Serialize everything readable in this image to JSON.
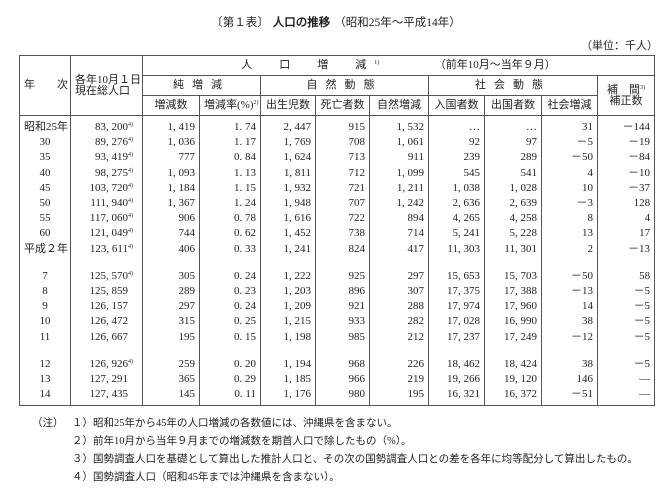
{
  "title": {
    "label": "〔第１表〕",
    "main": "人口の推移",
    "range": "（昭和25年～平成14年）"
  },
  "unit": "（単位：千人）",
  "header": {
    "year": "年　　次",
    "total": "各年10月１日\n現在総人口",
    "change": "人　口　増　減",
    "change_note": "1)",
    "period": "（前年10月～当年９月）",
    "net": "純増減",
    "natural": "自然動態",
    "social": "社会動態",
    "adjust": "補　間",
    "adjust_note": "3)",
    "adjust2": "補正数",
    "cols": [
      "増減数",
      "増減率(%)",
      "出生児数",
      "死亡者数",
      "自然増減",
      "入国者数",
      "出国者数",
      "社会増減"
    ],
    "rate_note": "2)"
  },
  "rows": [
    {
      "year": "昭和25年",
      "total": "83, 200",
      "fn": "4)",
      "net": "1, 419",
      "rate": "1. 74",
      "birth": "2, 447",
      "death": "915",
      "nat": "1, 532",
      "in": "…",
      "out": "…",
      "soc": "31",
      "adj": "－144"
    },
    {
      "year": "30",
      "total": "89, 276",
      "fn": "4)",
      "net": "1, 036",
      "rate": "1. 17",
      "birth": "1, 769",
      "death": "708",
      "nat": "1, 061",
      "in": "92",
      "out": "97",
      "soc": "－5",
      "adj": "－19"
    },
    {
      "year": "35",
      "total": "93, 419",
      "fn": "4)",
      "net": "777",
      "rate": "0. 84",
      "birth": "1, 624",
      "death": "713",
      "nat": "911",
      "in": "239",
      "out": "289",
      "soc": "－50",
      "adj": "－84"
    },
    {
      "year": "40",
      "total": "98, 275",
      "fn": "4)",
      "net": "1, 093",
      "rate": "1. 13",
      "birth": "1, 811",
      "death": "712",
      "nat": "1, 099",
      "in": "545",
      "out": "541",
      "soc": "4",
      "adj": "－10"
    },
    {
      "year": "45",
      "total": "103, 720",
      "fn": "4)",
      "net": "1, 184",
      "rate": "1. 15",
      "birth": "1, 932",
      "death": "721",
      "nat": "1, 211",
      "in": "1, 038",
      "out": "1, 028",
      "soc": "10",
      "adj": "－37"
    },
    {
      "year": "50",
      "total": "111, 940",
      "fn": "4)",
      "net": "1, 367",
      "rate": "1. 24",
      "birth": "1, 948",
      "death": "707",
      "nat": "1, 242",
      "in": "2, 636",
      "out": "2, 639",
      "soc": "－3",
      "adj": "128"
    },
    {
      "year": "55",
      "total": "117, 060",
      "fn": "4)",
      "net": "906",
      "rate": "0. 78",
      "birth": "1, 616",
      "death": "722",
      "nat": "894",
      "in": "4, 265",
      "out": "4, 258",
      "soc": "8",
      "adj": "4"
    },
    {
      "year": "60",
      "total": "121, 049",
      "fn": "4)",
      "net": "744",
      "rate": "0. 62",
      "birth": "1, 452",
      "death": "738",
      "nat": "714",
      "in": "5, 241",
      "out": "5, 228",
      "soc": "13",
      "adj": "17"
    },
    {
      "year": "平成２年",
      "total": "123, 611",
      "fn": "4)",
      "net": "406",
      "rate": "0. 33",
      "birth": "1, 241",
      "death": "824",
      "nat": "417",
      "in": "11, 303",
      "out": "11, 301",
      "soc": "2",
      "adj": "－13"
    },
    {
      "gap": true
    },
    {
      "year": "7",
      "total": "125, 570",
      "fn": "4)",
      "net": "305",
      "rate": "0. 24",
      "birth": "1, 222",
      "death": "925",
      "nat": "297",
      "in": "15, 653",
      "out": "15, 703",
      "soc": "－50",
      "adj": "58"
    },
    {
      "year": "8",
      "total": "125, 859",
      "fn": "",
      "net": "289",
      "rate": "0. 23",
      "birth": "1, 203",
      "death": "896",
      "nat": "307",
      "in": "17, 375",
      "out": "17, 388",
      "soc": "－13",
      "adj": "－5"
    },
    {
      "year": "9",
      "total": "126, 157",
      "fn": "",
      "net": "297",
      "rate": "0. 24",
      "birth": "1, 209",
      "death": "921",
      "nat": "288",
      "in": "17, 974",
      "out": "17, 960",
      "soc": "14",
      "adj": "－5"
    },
    {
      "year": "10",
      "total": "126, 472",
      "fn": "",
      "net": "315",
      "rate": "0. 25",
      "birth": "1, 215",
      "death": "933",
      "nat": "282",
      "in": "17, 028",
      "out": "16, 990",
      "soc": "38",
      "adj": "－5"
    },
    {
      "year": "11",
      "total": "126, 667",
      "fn": "",
      "net": "195",
      "rate": "0. 15",
      "birth": "1, 198",
      "death": "985",
      "nat": "212",
      "in": "17, 237",
      "out": "17, 249",
      "soc": "－12",
      "adj": "－5"
    },
    {
      "gap": true
    },
    {
      "year": "12",
      "total": "126, 926",
      "fn": "4)",
      "net": "259",
      "rate": "0. 20",
      "birth": "1, 194",
      "death": "968",
      "nat": "226",
      "in": "18, 462",
      "out": "18, 424",
      "soc": "38",
      "adj": "－5"
    },
    {
      "year": "13",
      "total": "127, 291",
      "fn": "",
      "net": "365",
      "rate": "0. 29",
      "birth": "1, 185",
      "death": "966",
      "nat": "219",
      "in": "19, 266",
      "out": "19, 120",
      "soc": "146",
      "adj": "―"
    },
    {
      "year": "14",
      "total": "127, 435",
      "fn": "",
      "net": "145",
      "rate": "0. 11",
      "birth": "1, 176",
      "death": "980",
      "nat": "195",
      "in": "16, 321",
      "out": "16, 372",
      "soc": "－51",
      "adj": "―"
    }
  ],
  "notes": {
    "label": "（注）",
    "items": [
      "１）昭和25年から45年の人口増減の各数値には、沖縄県を含まない。",
      "２）前年10月から当年９月までの増減数を期首人口で除したもの（%）。",
      "３）国勢調査人口を基礎として算出した推計人口と、その次の国勢調査人口との差を各年に均等配分して算出したもの。",
      "４）国勢調査人口（昭和45年までは沖縄県を含まない）。"
    ]
  }
}
